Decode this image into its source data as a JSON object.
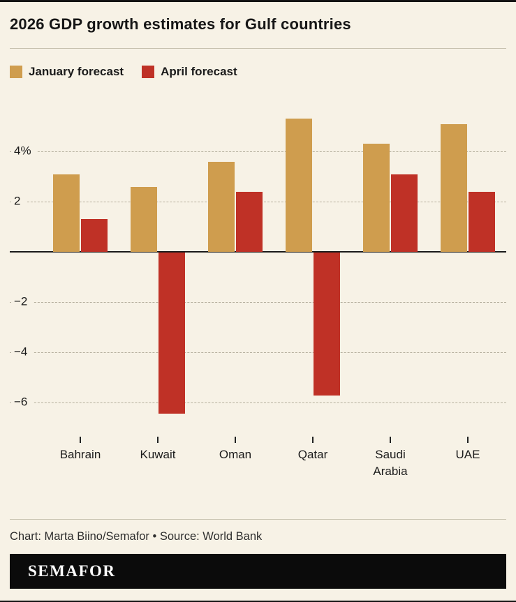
{
  "title": "2026 GDP growth estimates for Gulf countries",
  "legend": [
    {
      "label": "January forecast",
      "color": "#cf9d4e"
    },
    {
      "label": "April forecast",
      "color": "#bf3126"
    }
  ],
  "chart_data": {
    "type": "bar",
    "categories": [
      "Bahrain",
      "Kuwait",
      "Oman",
      "Qatar",
      "Saudi Arabia",
      "UAE"
    ],
    "series": [
      {
        "name": "January forecast",
        "color": "#cf9d4e",
        "values": [
          3.1,
          2.6,
          3.6,
          5.3,
          4.3,
          5.1
        ]
      },
      {
        "name": "April forecast",
        "color": "#bf3126",
        "values": [
          1.3,
          -6.4,
          2.4,
          -5.7,
          3.1,
          2.4
        ]
      }
    ],
    "title": "2026 GDP growth estimates for Gulf countries",
    "xlabel": "",
    "ylabel": "",
    "y_ticks": [
      {
        "value": 4,
        "label": "4%"
      },
      {
        "value": 2,
        "label": "2"
      },
      {
        "value": -2,
        "label": "−2"
      },
      {
        "value": -4,
        "label": "−4"
      },
      {
        "value": -6,
        "label": "−6"
      }
    ],
    "ylim": [
      -7.3,
      6.2
    ],
    "grid": "dashed-horizontal",
    "legend_position": "top-left"
  },
  "footer": {
    "credit": "Chart: Marta Biino/Semafor • Source: World Bank",
    "logo": "SEMAFOR"
  },
  "colors": {
    "background": "#f7f2e6",
    "january": "#cf9d4e",
    "april": "#bf3126",
    "axis": "#1a1a1a",
    "gridline": "#b5af9d"
  }
}
